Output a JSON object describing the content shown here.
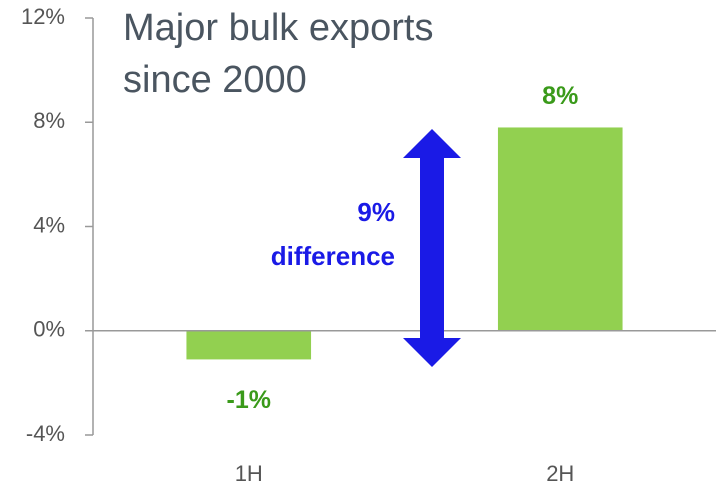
{
  "chart_data": {
    "type": "bar",
    "title": "Major bulk exports since 2000",
    "categories": [
      "1H",
      "2H"
    ],
    "values": [
      -1.1,
      7.8
    ],
    "value_labels": [
      "-1%",
      "8%"
    ],
    "color": "#92d050",
    "label_color": "#3a9a1a",
    "annotation": "9% difference",
    "annotation_color": "#1a1ae6",
    "ylim": [
      -4,
      12
    ],
    "yticks": [
      {
        "value": -4,
        "label": "-4%"
      },
      {
        "value": 0,
        "label": "0%"
      },
      {
        "value": 4,
        "label": "4%"
      },
      {
        "value": 8,
        "label": "8%"
      },
      {
        "value": 12,
        "label": "12%"
      }
    ],
    "grid": false
  }
}
